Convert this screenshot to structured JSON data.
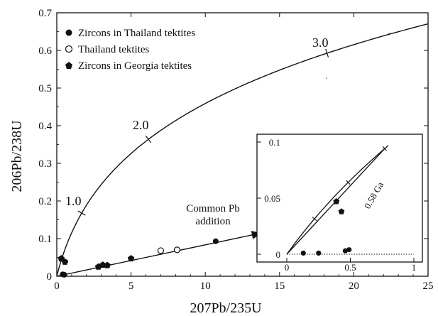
{
  "chart_data": {
    "type": "scatter",
    "xlabel": "207Pb/235U",
    "ylabel": "206Pb/238U",
    "xlim": [
      0,
      25
    ],
    "ylim": [
      0,
      0.7
    ],
    "xticks": [
      "0",
      "5",
      "10",
      "15",
      "20",
      "25"
    ],
    "yticks": [
      "0",
      "0.1",
      "0.2",
      "0.3",
      "0.4",
      "0.5",
      "0.6",
      "0.7"
    ],
    "grid": false,
    "legend_position": "top-left",
    "concordia": {
      "ages_labeled": [
        "1.0",
        "2.0",
        "3.0"
      ],
      "label_ages_ga": [
        1.0,
        2.0,
        3.0
      ]
    },
    "series": [
      {
        "name": "Zircons in Thailand tektites",
        "marker": "filled-circle",
        "points": [
          [
            0.4,
            0.005
          ],
          [
            0.5,
            0.004
          ],
          [
            10.7,
            0.093
          ]
        ]
      },
      {
        "name": "Thailand tektites",
        "marker": "open-circle",
        "points": [
          [
            7.0,
            0.068
          ],
          [
            8.1,
            0.07
          ]
        ]
      },
      {
        "name": "Zircons in Georgia tektites",
        "marker": "filled-pentagon",
        "points": [
          [
            0.3,
            0.047
          ],
          [
            0.55,
            0.038
          ],
          [
            2.8,
            0.025
          ],
          [
            3.1,
            0.03
          ],
          [
            3.4,
            0.029
          ],
          [
            5.0,
            0.047
          ]
        ]
      }
    ],
    "annotations": {
      "arrow_label_line1": "Common Pb",
      "arrow_label_line2": "addition",
      "arrow_start": [
        0,
        0
      ],
      "arrow_end": [
        13.8,
        0.115
      ]
    },
    "inset": {
      "xlim": [
        0,
        1
      ],
      "ylim": [
        0,
        0.1
      ],
      "xticks": [
        "0",
        "0.5",
        "1"
      ],
      "yticks": [
        "0",
        "0.05",
        "0.1"
      ],
      "discordia_label": "0.58 Ga",
      "series": [
        {
          "name": "Zircons in Thailand tektites",
          "marker": "filled-circle",
          "points": [
            [
              0.13,
              0.001
            ],
            [
              0.25,
              0.001
            ],
            [
              0.46,
              0.003
            ],
            [
              0.49,
              0.004
            ]
          ]
        },
        {
          "name": "Zircons in Georgia tektites",
          "marker": "filled-pentagon",
          "points": [
            [
              0.39,
              0.047
            ],
            [
              0.43,
              0.038
            ]
          ]
        }
      ]
    }
  }
}
